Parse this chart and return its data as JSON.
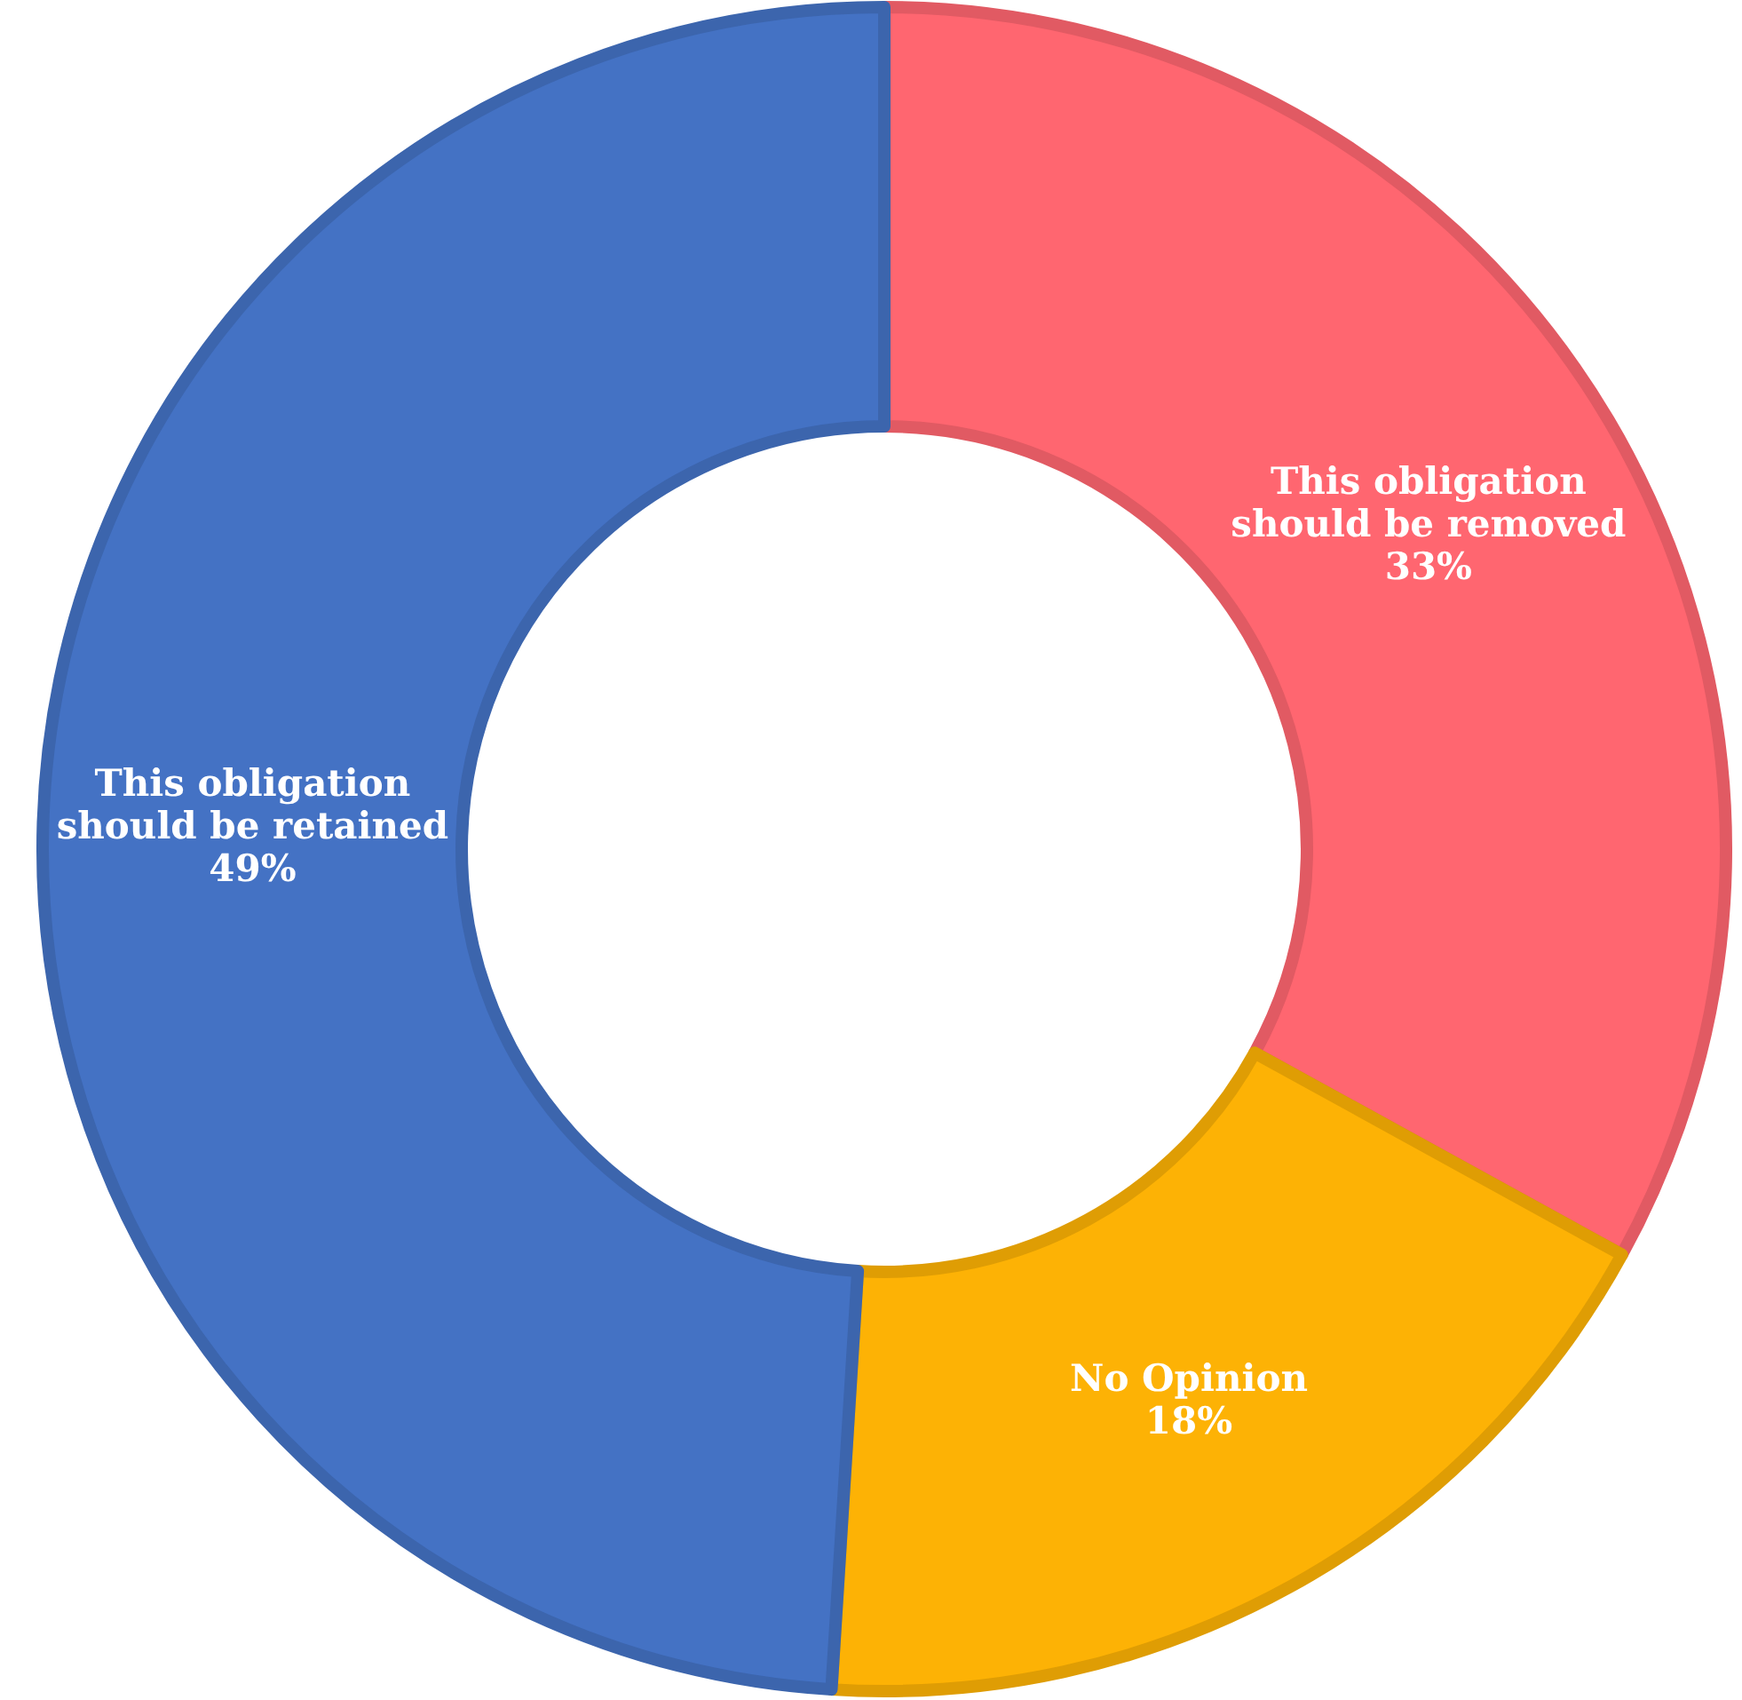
{
  "chart_data": {
    "type": "donut",
    "categories": [
      "This obligation should be removed",
      "No Opinion",
      "This obligation should be retained"
    ],
    "values": [
      33,
      18,
      49
    ],
    "colors": [
      "#ff6670",
      "#fdb205",
      "#4472c4"
    ],
    "value_labels": [
      "33%",
      "18%",
      "49%"
    ]
  }
}
